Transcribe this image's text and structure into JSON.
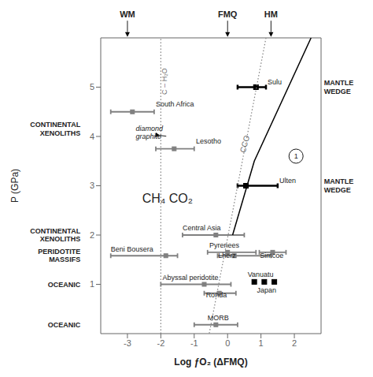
{
  "chart_data": {
    "type": "range",
    "xlabel": "Log ƒO₂ (ΔFMQ)",
    "ylabel": "P (GPa)",
    "xlim": [
      -3.8,
      2.8
    ],
    "ylim": [
      0.0,
      6.0
    ],
    "xticks": [
      -3,
      -2,
      -1,
      0,
      1,
      2
    ],
    "yticks": [
      1,
      2,
      3,
      4,
      5
    ],
    "grid": false,
    "series": [
      {
        "type": "range",
        "color": "black",
        "marker": "square",
        "y": [
          5.0,
          3.0
        ],
        "xmin": [
          0.3,
          0.3
        ],
        "xmax": [
          1.15,
          1.5
        ],
        "x": [
          0.85,
          0.55
        ]
      },
      {
        "type": "range",
        "color": "#808080",
        "marker": "square",
        "y": [
          4.5,
          3.75,
          2.0,
          1.58,
          1.65,
          1.58,
          1.65,
          1.0,
          0.82,
          0.18
        ],
        "xmin": [
          -3.5,
          -2.15,
          -1.35,
          -3.5,
          -0.6,
          -0.3,
          0.95,
          -2.0,
          -0.7,
          -1.0
        ],
        "xmax": [
          -2.2,
          -1.0,
          0.5,
          -1.5,
          0.85,
          1.3,
          1.75,
          0.1,
          0.25,
          0.3
        ],
        "x": [
          -2.85,
          -1.6,
          -0.35,
          -1.85,
          0.0,
          0.2,
          1.35,
          -0.7,
          -0.25,
          -0.35
        ]
      },
      {
        "type": "scatter",
        "color": "black",
        "marker": "square",
        "x": [
          0.8,
          1.1,
          1.4
        ],
        "y": [
          1.05,
          1.05,
          1.05
        ]
      },
      {
        "type": "line",
        "color": "gray",
        "line_style": "dotted",
        "x": [
          -2.0,
          -2.0
        ],
        "y": [
          0.0,
          6.0
        ]
      },
      {
        "type": "line",
        "color": "gray",
        "line_style": "dotted",
        "x": [
          1.15,
          -0.55
        ],
        "y": [
          6.0,
          0.0
        ]
      },
      {
        "type": "line",
        "color": "black",
        "line_style": "solid",
        "x": [
          2.5,
          0.8,
          0.15
        ],
        "y": [
          6.0,
          3.5,
          2.0
        ]
      }
    ],
    "annotations": [
      {
        "text": "Sulu",
        "x": 1.2,
        "y": 5.02
      },
      {
        "text": "Ulten",
        "x": 1.55,
        "y": 3.02
      },
      {
        "text": "South Africa",
        "x": -2.15,
        "y": 4.58
      },
      {
        "text": "Lesotho",
        "x": -0.95,
        "y": 3.82
      },
      {
        "text": "Central Asia",
        "x": -1.35,
        "y": 2.06
      },
      {
        "text": "Beni Bousera",
        "x": -3.5,
        "y": 1.64
      },
      {
        "text": "Pyrenees",
        "x": -0.55,
        "y": 1.72
      },
      {
        "text": "Lherz",
        "x": -0.28,
        "y": 1.5
      },
      {
        "text": "Simcoe",
        "x": 0.97,
        "y": 1.5
      },
      {
        "text": "Abyssal peridotite",
        "x": -1.95,
        "y": 1.06
      },
      {
        "text": "Ronda",
        "x": -0.65,
        "y": 0.7
      },
      {
        "text": "MORB",
        "x": -0.6,
        "y": 0.24
      },
      {
        "text": "Vanuatu",
        "x": 0.6,
        "y": 1.12
      },
      {
        "text": "Japan",
        "x": 0.88,
        "y": 0.8
      },
      {
        "text": "CH₄   CO₂",
        "x": -1.8,
        "y": 2.75
      },
      {
        "text": "diamond\ngraphite",
        "x": -2.75,
        "y": 4.08,
        "xy": [
          -2.02,
          4.02
        ]
      },
      {
        "text": "CCO",
        "x": 0.5,
        "y": 3.85
      },
      {
        "text": "C – H₂O",
        "x": -1.88,
        "y": 4.85
      },
      {
        "text": "CONTINENTAL\nXENOLITHS",
        "x": -3.82,
        "y": 4.15
      },
      {
        "text": "CONTINENTAL\nXENOLITHS",
        "x": -3.82,
        "y": 2.0
      },
      {
        "text": "PERIDOTITE\nMASSIFS",
        "x": -3.82,
        "y": 1.58
      },
      {
        "text": "OCEANIC",
        "x": -3.82,
        "y": 1.0
      },
      {
        "text": "OCEANIC",
        "x": -3.82,
        "y": 0.18
      },
      {
        "text": "MANTLE\nWEDGE",
        "x": 2.82,
        "y": 5.0
      },
      {
        "text": "MANTLE\nWEDGE",
        "x": 2.82,
        "y": 3.0
      },
      {
        "text": "WM",
        "x": -3.0,
        "y": 6.38,
        "xy": [
          -3.0,
          6.02
        ]
      },
      {
        "text": "FMQ",
        "x": 0.0,
        "y": 6.38,
        "xy": [
          0.0,
          6.02
        ]
      },
      {
        "text": "HM",
        "x": 1.3,
        "y": 6.38,
        "xy": [
          1.3,
          6.02
        ]
      },
      {
        "text": "1",
        "x": 2.05,
        "y": 3.6,
        "marker": "circle"
      }
    ]
  }
}
